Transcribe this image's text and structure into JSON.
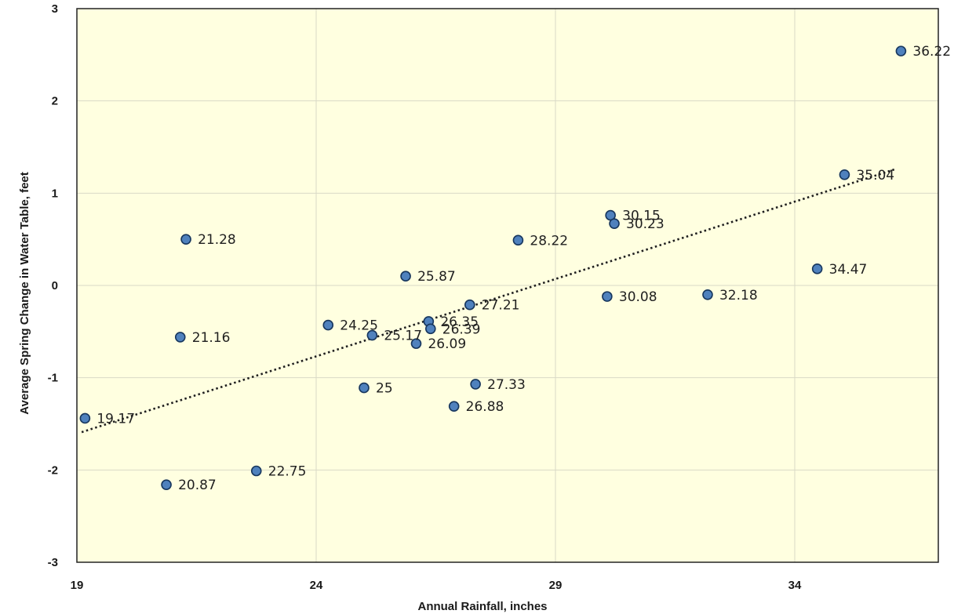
{
  "chart_data": {
    "type": "scatter",
    "xlabel": "Annual Rainfall, inches",
    "ylabel": "Average Spring Change in Water Table, feet",
    "xlim": [
      19,
      37
    ],
    "ylim": [
      -3,
      3
    ],
    "x_ticks": [
      "19",
      "24",
      "29",
      "34"
    ],
    "y_ticks": [
      "3",
      "2",
      "1",
      "0",
      "-1",
      "-2",
      "-3"
    ],
    "grid": true,
    "legend": "none",
    "points": [
      {
        "x": 19.17,
        "y": -1.44,
        "label": "19.17"
      },
      {
        "x": 20.87,
        "y": -2.16,
        "label": "20.87"
      },
      {
        "x": 21.16,
        "y": -0.56,
        "label": "21.16"
      },
      {
        "x": 21.28,
        "y": 0.5,
        "label": "21.28"
      },
      {
        "x": 22.75,
        "y": -2.01,
        "label": "22.75"
      },
      {
        "x": 24.25,
        "y": -0.43,
        "label": "24.25"
      },
      {
        "x": 25.0,
        "y": -1.11,
        "label": "25"
      },
      {
        "x": 25.17,
        "y": -0.54,
        "label": "25.17"
      },
      {
        "x": 25.87,
        "y": 0.1,
        "label": "25.87"
      },
      {
        "x": 26.09,
        "y": -0.63,
        "label": "26.09"
      },
      {
        "x": 26.35,
        "y": -0.39,
        "label": "26.35"
      },
      {
        "x": 26.39,
        "y": -0.47,
        "label": "26.39"
      },
      {
        "x": 26.88,
        "y": -1.31,
        "label": "26.88"
      },
      {
        "x": 27.21,
        "y": -0.21,
        "label": "27.21"
      },
      {
        "x": 27.33,
        "y": -1.07,
        "label": "27.33"
      },
      {
        "x": 28.22,
        "y": 0.49,
        "label": "28.22"
      },
      {
        "x": 30.08,
        "y": -0.12,
        "label": "30.08"
      },
      {
        "x": 30.15,
        "y": 0.76,
        "label": "30.15"
      },
      {
        "x": 30.23,
        "y": 0.67,
        "label": "30.23"
      },
      {
        "x": 32.18,
        "y": -0.1,
        "label": "32.18"
      },
      {
        "x": 34.47,
        "y": 0.18,
        "label": "34.47"
      },
      {
        "x": 35.04,
        "y": 1.2,
        "label": "35.04"
      },
      {
        "x": 36.22,
        "y": 2.54,
        "label": "36.22"
      }
    ],
    "trendline": {
      "style": "dotted",
      "x": [
        19.1,
        36.1
      ],
      "y": [
        -1.59,
        1.26
      ]
    },
    "colors": {
      "plot_bg": "#ffffe0",
      "point_fill": "#4f81bd",
      "point_stroke": "#17365d",
      "grid": "#d9d9c6",
      "frame": "#222222",
      "trend": "#1f1f1f"
    }
  }
}
